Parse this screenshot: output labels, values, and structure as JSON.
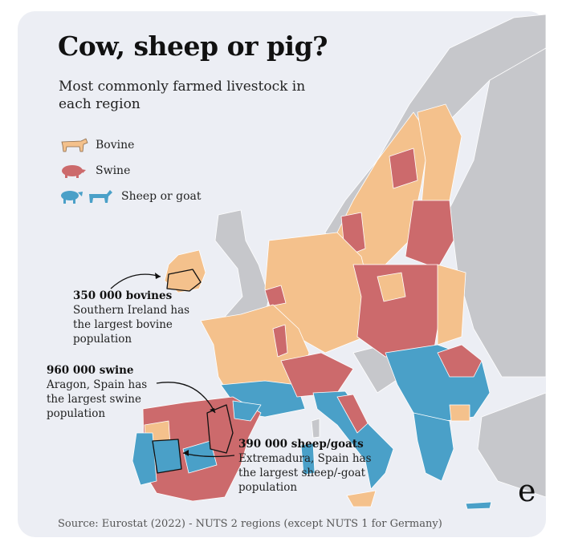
{
  "title": "Cow, sheep or pig?",
  "subtitle": "Most commonly farmed livestock in each region",
  "legend": [
    {
      "label": "Bovine",
      "color": "#f4c18c",
      "icon": "cow-icon"
    },
    {
      "label": "Swine",
      "color": "#cc6a6c",
      "icon": "pig-icon"
    },
    {
      "label": "Sheep or goat",
      "color": "#4aa0c8",
      "icon": "sheep-goat-icon"
    }
  ],
  "no_data_color": "#c6c7cb",
  "annotations": [
    {
      "headline": "350 000 bovines",
      "text": "Southern Ireland has the largest bovine population"
    },
    {
      "headline": "960 000 swine",
      "text": "Aragon, Spain has the largest swine population"
    },
    {
      "headline": "390 000 sheep/goats",
      "text": "Extremadura, Spain has the largest sheep/-goat population"
    }
  ],
  "source": "Source: Eurostat (2022) - NUTS 2 regions (except NUTS 1 for Germany)",
  "logo": "e"
}
